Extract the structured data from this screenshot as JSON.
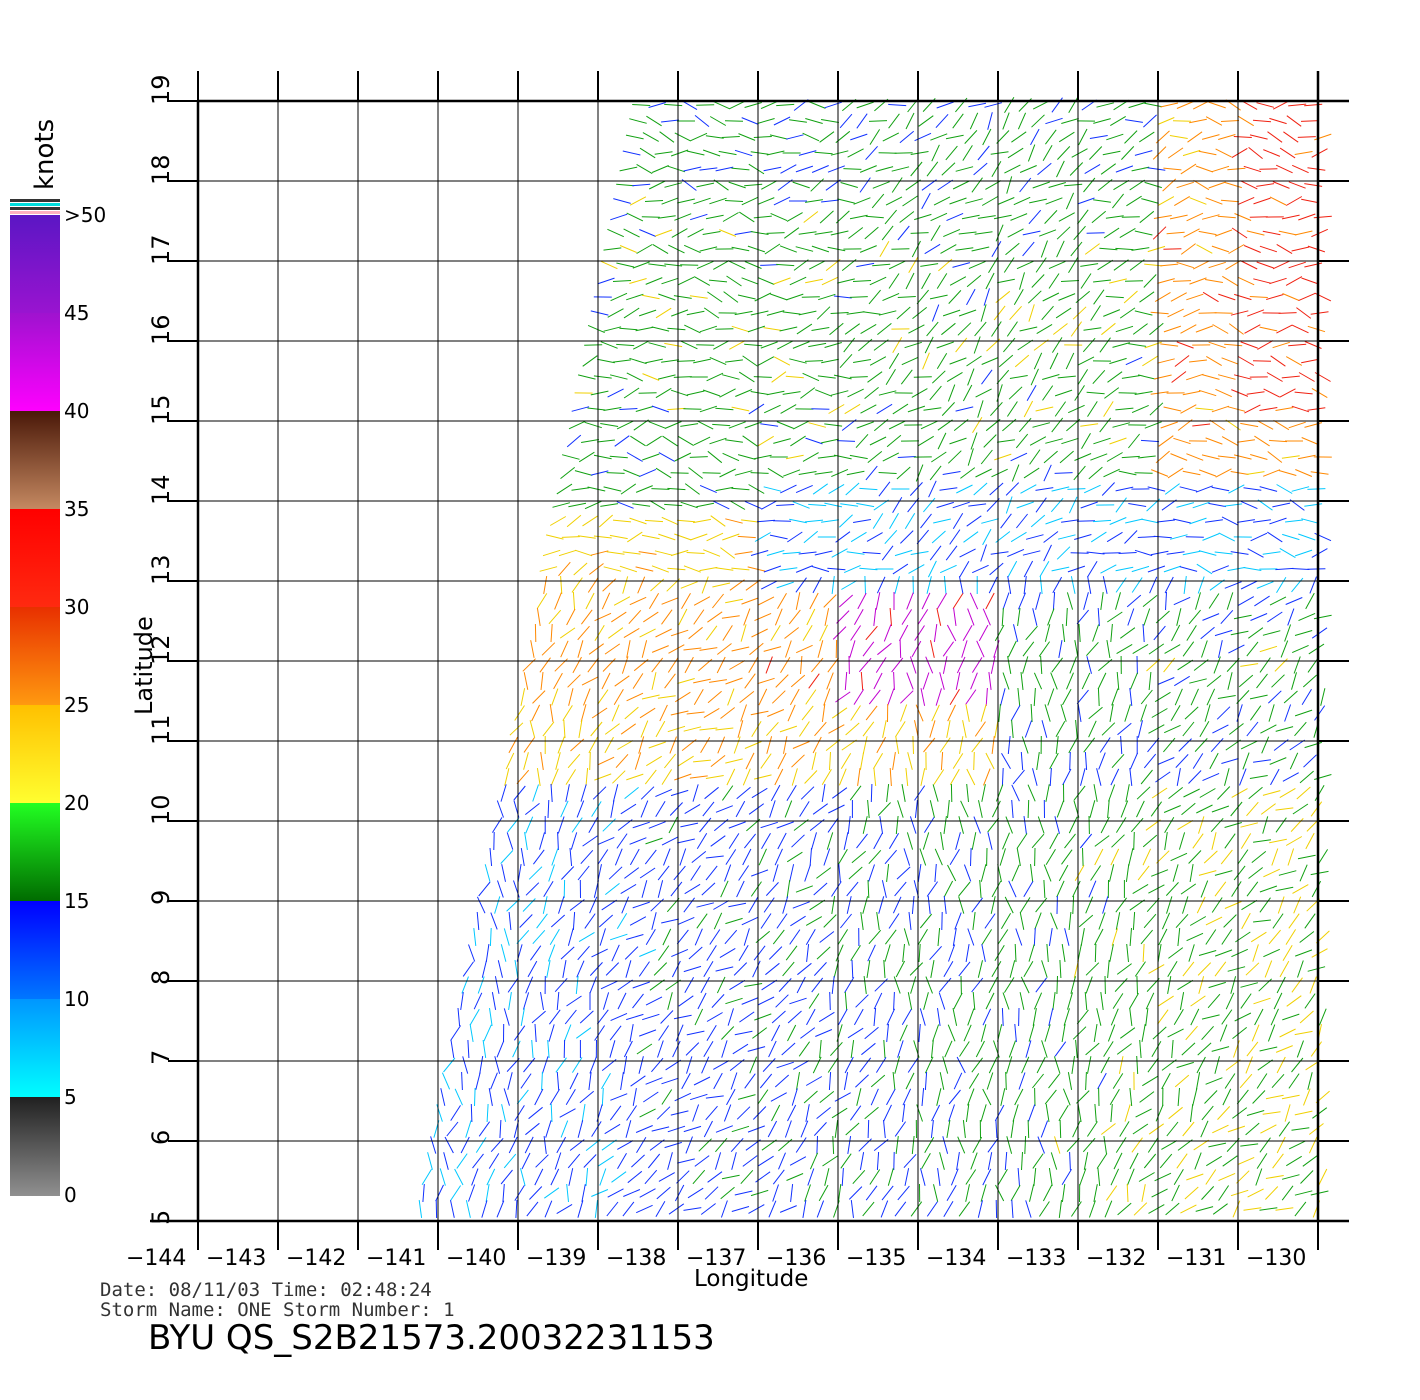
{
  "colorbar": {
    "unit": "knots",
    "labels": [
      ">50",
      "45",
      "40",
      "35",
      "30",
      "25",
      "20",
      "15",
      "10",
      "5",
      "0"
    ],
    "segments": [
      {
        "from": 50,
        "to": 45,
        "top": "#5b16c4",
        "bottom": "#9a14d0"
      },
      {
        "from": 45,
        "to": 40,
        "top": "#9f12cf",
        "bottom": "#ff00ff"
      },
      {
        "from": 40,
        "to": 35,
        "top": "#4a1808",
        "bottom": "#c68a62"
      },
      {
        "from": 35,
        "to": 30,
        "top": "#ff0000",
        "bottom": "#ff2a10"
      },
      {
        "from": 30,
        "to": 25,
        "top": "#e83000",
        "bottom": "#ff9a10"
      },
      {
        "from": 25,
        "to": 20,
        "top": "#ffc000",
        "bottom": "#ffff30"
      },
      {
        "from": 20,
        "to": 15,
        "top": "#22ff22",
        "bottom": "#006a00"
      },
      {
        "from": 15,
        "to": 10,
        "top": "#0000ff",
        "bottom": "#0078ff"
      },
      {
        "from": 10,
        "to": 5,
        "top": "#0096ff",
        "bottom": "#00ffff"
      },
      {
        "from": 5,
        "to": 0,
        "top": "#202020",
        "bottom": "#909090"
      }
    ]
  },
  "map": {
    "xlabel": "Longitude",
    "ylabel": "Latitude",
    "lon_range": [
      -144,
      -130
    ],
    "lat_range": [
      5,
      19
    ],
    "lon_ticks": [
      "−144",
      "−143",
      "−142",
      "−141",
      "−140",
      "−139",
      "−138",
      "−137",
      "−136",
      "−135",
      "−134",
      "−133",
      "−132",
      "−131",
      "−130"
    ],
    "lat_ticks": [
      "5",
      "6",
      "7",
      "8",
      "9",
      "10",
      "11",
      "12",
      "13",
      "14",
      "15",
      "16",
      "17",
      "18",
      "19"
    ],
    "grid": true,
    "swath_corners_lonlat": [
      [
        -141.3,
        5.0
      ],
      [
        -130,
        5.0
      ],
      [
        -130,
        19.0
      ],
      [
        -138.5,
        19.0
      ]
    ]
  },
  "info": {
    "date_line": "Date: 08/11/03   Time: 02:48:24",
    "storm_line": "Storm Name: ONE   Storm Number: 1",
    "product": "BYU QS_S2B21573.20032231153"
  }
}
